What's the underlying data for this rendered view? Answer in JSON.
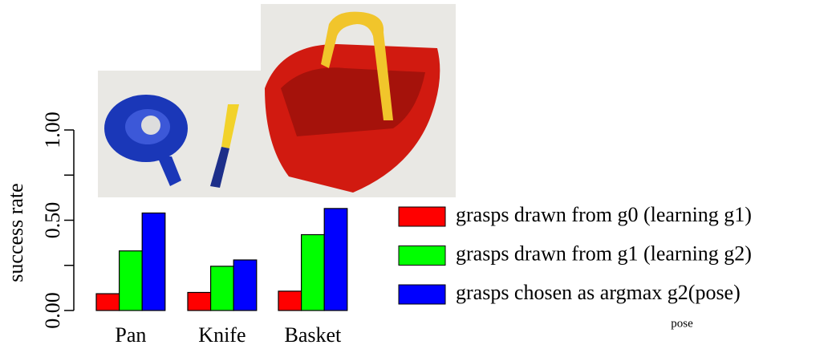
{
  "chart_data": {
    "type": "bar",
    "ylabel": "success rate",
    "categories": [
      "Pan",
      "Knife",
      "Basket"
    ],
    "series": [
      {
        "name": "grasps drawn from g0 (learning g1)",
        "color": "#ff0000",
        "values": [
          0.093,
          0.1,
          0.107
        ]
      },
      {
        "name": "grasps drawn from g1 (learning g2)",
        "color": "#00ff00",
        "values": [
          0.33,
          0.245,
          0.42
        ]
      },
      {
        "name": "grasps chosen as argmax g2(pose)",
        "color": "#0000ff",
        "values": [
          0.54,
          0.28,
          0.565
        ]
      }
    ],
    "annotation": "pose",
    "ylim": [
      0,
      1
    ],
    "yticks": [
      {
        "value": 0,
        "label": "0.00"
      },
      {
        "value": 0.5,
        "label": "0.50"
      },
      {
        "value": 1,
        "label": "1.00"
      }
    ],
    "minor_yticks": [
      0.25,
      0.75
    ],
    "legend": "right"
  }
}
